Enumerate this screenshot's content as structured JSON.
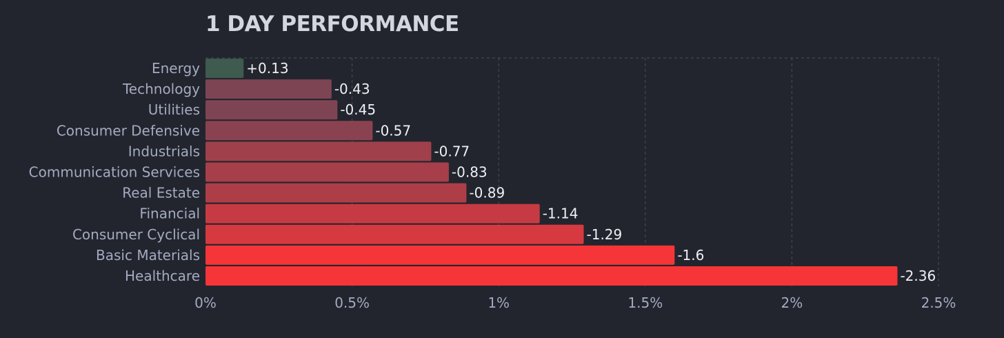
{
  "chart_data": {
    "type": "bar",
    "orientation": "horizontal",
    "title": "1 DAY PERFORMANCE",
    "xlabel": "",
    "ylabel": "",
    "categories": [
      "Energy",
      "Technology",
      "Utilities",
      "Consumer Defensive",
      "Industrials",
      "Communication Services",
      "Real Estate",
      "Financial",
      "Consumer Cyclical",
      "Basic Materials",
      "Healthcare"
    ],
    "values": [
      0.13,
      -0.43,
      -0.45,
      -0.57,
      -0.77,
      -0.83,
      -0.89,
      -1.14,
      -1.29,
      -1.6,
      -2.36
    ],
    "value_labels": [
      "+0.13",
      "-0.43",
      "-0.45",
      "-0.57",
      "-0.77",
      "-0.83",
      "-0.89",
      "-1.14",
      "-1.29",
      "-1.6",
      "-2.36"
    ],
    "bar_length": "absolute value",
    "xlim": [
      0,
      2.5
    ],
    "xticks": [
      0,
      0.5,
      1,
      1.5,
      2,
      2.5
    ],
    "xtick_labels": [
      "0%",
      "0.5%",
      "1%",
      "1.5%",
      "2%",
      "2.5%"
    ],
    "grid": "vertical dashed",
    "legend": "none",
    "colors": {
      "background": "#22252e",
      "positive": "#3f5a4f",
      "negative_light": "#7d4453",
      "negative_strong": "#f63538",
      "grid": "#4a4f5c"
    }
  }
}
